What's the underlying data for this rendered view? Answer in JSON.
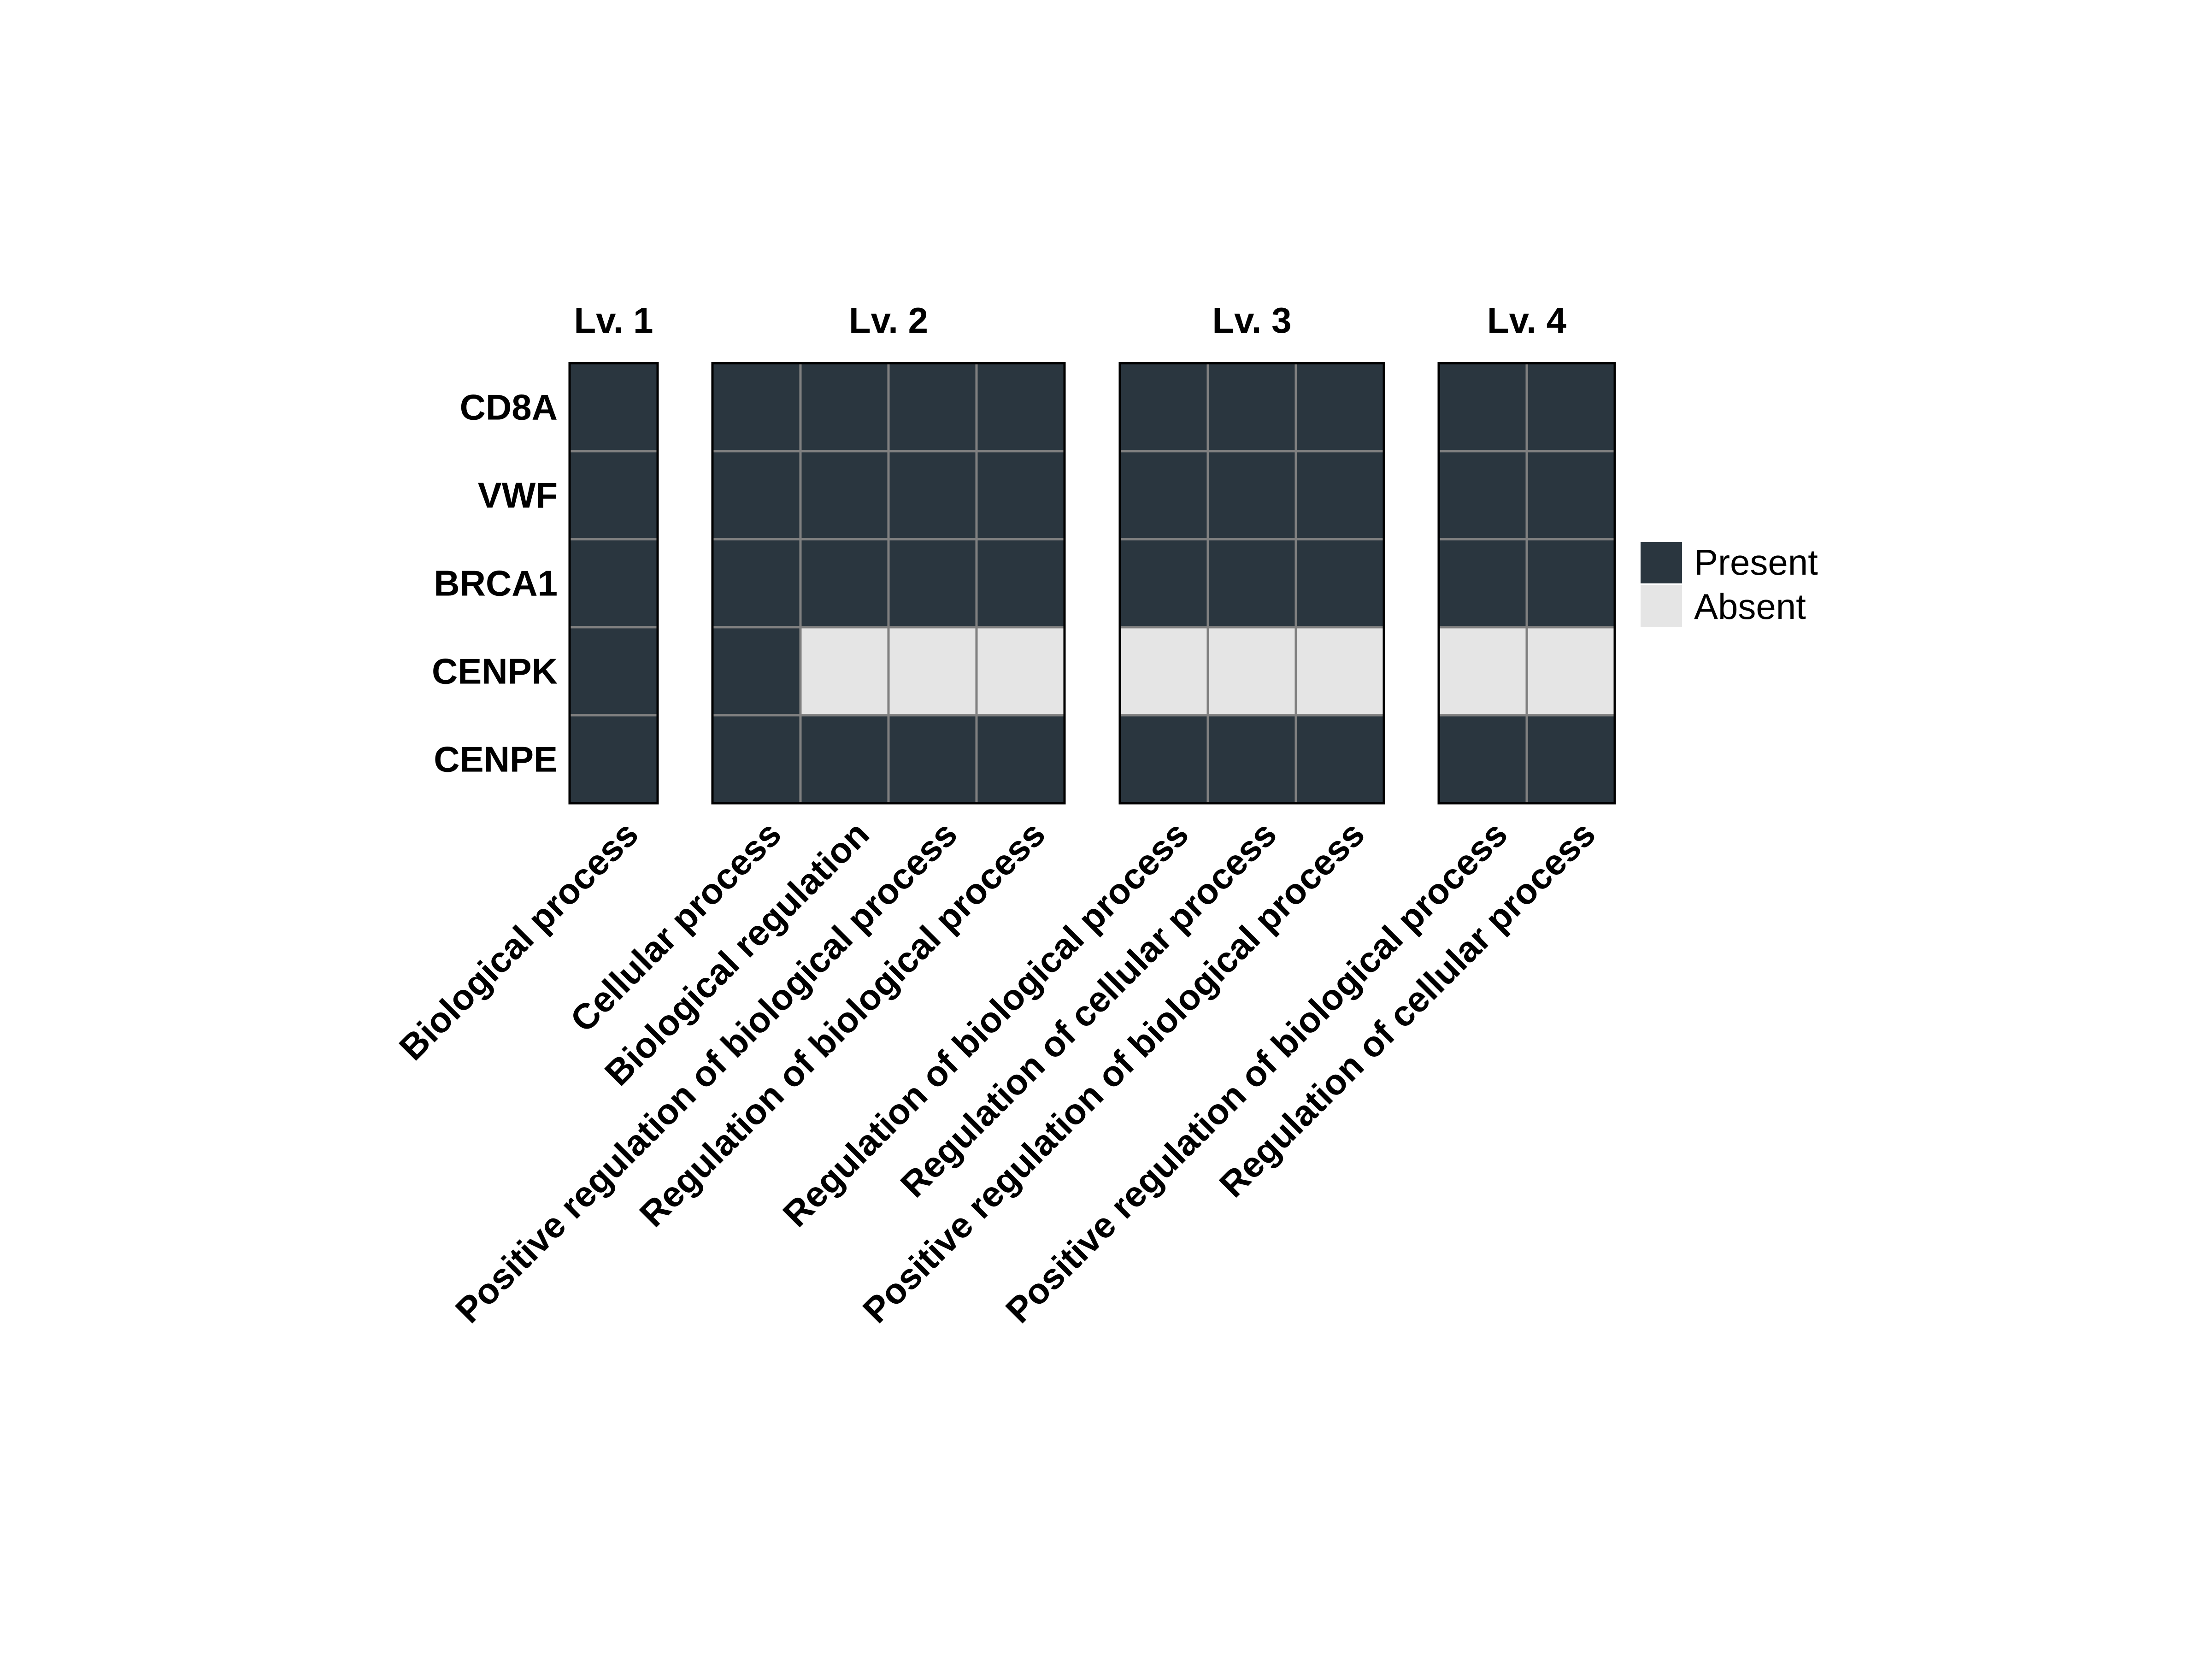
{
  "chart_data": {
    "type": "heatmap",
    "title": "",
    "rows": [
      "CD8A",
      "VWF",
      "BRCA1",
      "CENPK",
      "CENPE"
    ],
    "legend": [
      {
        "label": "Present",
        "value": 1
      },
      {
        "label": "Absent",
        "value": 0
      }
    ],
    "panels": [
      {
        "title": "Lv. 1",
        "columns": [
          "Biological process"
        ],
        "values": [
          [
            1
          ],
          [
            1
          ],
          [
            1
          ],
          [
            1
          ],
          [
            1
          ]
        ]
      },
      {
        "title": "Lv. 2",
        "columns": [
          "Cellular process",
          "Biological regulation",
          "Positive regulation of biological process",
          "Regulation of biological process"
        ],
        "values": [
          [
            1,
            1,
            1,
            1
          ],
          [
            1,
            1,
            1,
            1
          ],
          [
            1,
            1,
            1,
            1
          ],
          [
            1,
            0,
            0,
            0
          ],
          [
            1,
            1,
            1,
            1
          ]
        ]
      },
      {
        "title": "Lv. 3",
        "columns": [
          "Regulation of biological process",
          "Regulation of cellular process",
          "Positive regulation of biological process"
        ],
        "values": [
          [
            1,
            1,
            1
          ],
          [
            1,
            1,
            1
          ],
          [
            1,
            1,
            1
          ],
          [
            0,
            0,
            0
          ],
          [
            1,
            1,
            1
          ]
        ]
      },
      {
        "title": "Lv. 4",
        "columns": [
          "Positive regulation of biological process",
          "Regulation of cellular process"
        ],
        "values": [
          [
            1,
            1
          ],
          [
            1,
            1
          ],
          [
            1,
            1
          ],
          [
            0,
            0
          ],
          [
            1,
            1
          ]
        ]
      }
    ]
  },
  "colors": {
    "present": "#2a363f",
    "absent": "#e5e5e5",
    "grid": "#808080",
    "border": "#000000"
  }
}
